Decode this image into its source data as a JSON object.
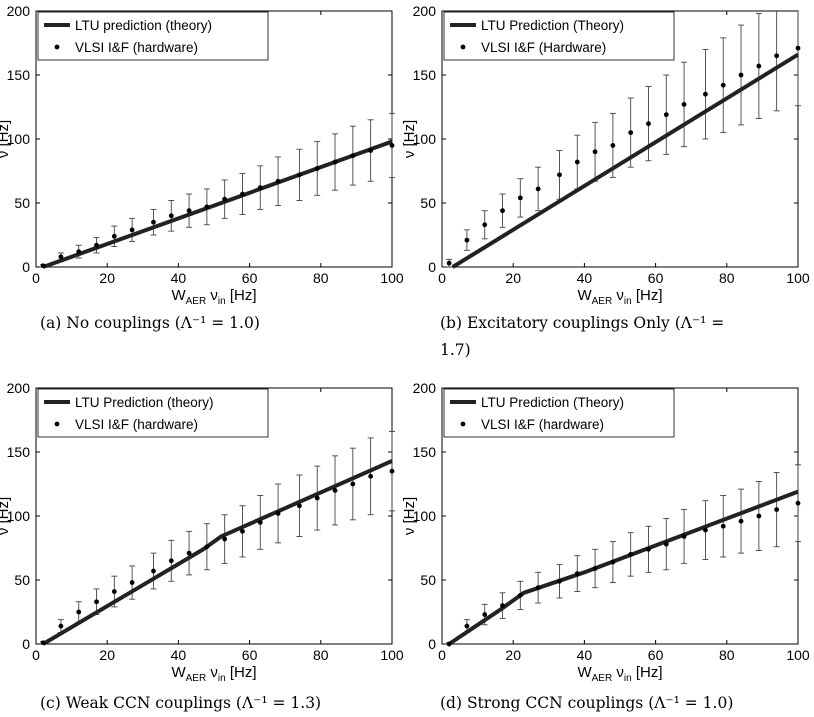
{
  "chart_data": [
    {
      "type": "line",
      "panel": "a",
      "xlabel_main": "W",
      "xlabel_sub1": "AER",
      "xlabel_mid": " ν",
      "xlabel_sub2": "in",
      "xlabel_end": " [Hz]",
      "ylabel": "ν [Hz]",
      "xlim": [
        0,
        100
      ],
      "ylim": [
        0,
        200
      ],
      "xticks": [
        "0",
        "20",
        "40",
        "60",
        "80",
        "100"
      ],
      "yticks": [
        "0",
        "50",
        "100",
        "150",
        "200"
      ],
      "legend_placement": "top-left",
      "caption": "(a) No couplings (Λ⁻¹ = 1.0)",
      "theory": {
        "name": "LTU prediction (theory)",
        "x": [
          2,
          100
        ],
        "y": [
          0,
          98
        ]
      },
      "hardware": {
        "name": "VLSI I&F (hardware)",
        "x": [
          2,
          7,
          12,
          17,
          22,
          27,
          33,
          38,
          43,
          48,
          53,
          58,
          63,
          68,
          74,
          79,
          84,
          89,
          94,
          100
        ],
        "y": [
          1,
          8,
          12,
          17,
          24,
          29,
          35,
          40,
          44,
          47,
          53,
          57,
          62,
          67,
          72,
          77,
          82,
          87,
          91,
          95
        ],
        "err": [
          1,
          3,
          5,
          6,
          8,
          9,
          10,
          12,
          13,
          14,
          15,
          16,
          17,
          19,
          20,
          21,
          22,
          23,
          24,
          25
        ]
      }
    },
    {
      "type": "line",
      "panel": "b",
      "xlabel_main": "W",
      "xlabel_sub1": "AER",
      "xlabel_mid": " ν",
      "xlabel_sub2": "in",
      "xlabel_end": " [Hz]",
      "ylabel": "ν [Hz]",
      "xlim": [
        0,
        100
      ],
      "ylim": [
        0,
        200
      ],
      "xticks": [
        "0",
        "20",
        "40",
        "60",
        "80",
        "100"
      ],
      "yticks": [
        "0",
        "50",
        "100",
        "150",
        "200"
      ],
      "legend_placement": "top-left",
      "caption": "(b) Excitatory couplings Only (Λ⁻¹ =",
      "caption_line2": "1.7)",
      "theory": {
        "name": "LTU Prediction (Theory)",
        "x": [
          3,
          100
        ],
        "y": [
          0,
          166
        ]
      },
      "hardware": {
        "name": "VLSI I&F (Hardware)",
        "x": [
          2,
          7,
          12,
          17,
          22,
          27,
          33,
          38,
          43,
          48,
          53,
          58,
          63,
          68,
          74,
          79,
          84,
          89,
          94,
          100
        ],
        "y": [
          3,
          21,
          33,
          44,
          54,
          61,
          72,
          82,
          90,
          95,
          105,
          112,
          119,
          127,
          135,
          142,
          150,
          157,
          165,
          171
        ],
        "err": [
          3,
          8,
          11,
          13,
          15,
          17,
          19,
          21,
          23,
          25,
          27,
          29,
          31,
          33,
          35,
          37,
          39,
          41,
          43,
          45
        ]
      }
    },
    {
      "type": "line",
      "panel": "c",
      "xlabel_main": "W",
      "xlabel_sub1": "AER",
      "xlabel_mid": " ν",
      "xlabel_sub2": "in",
      "xlabel_end": " [Hz]",
      "ylabel": "ν [Hz]",
      "xlim": [
        0,
        100
      ],
      "ylim": [
        0,
        200
      ],
      "xticks": [
        "0",
        "20",
        "40",
        "60",
        "80",
        "100"
      ],
      "yticks": [
        "0",
        "50",
        "100",
        "150",
        "200"
      ],
      "legend_placement": "top-left",
      "caption": "(c) Weak CCN couplings (Λ⁻¹ = 1.3)",
      "theory": {
        "name": "LTU Prediction (theory)",
        "x": [
          2,
          47,
          52,
          100
        ],
        "y": [
          0,
          74,
          84,
          143
        ]
      },
      "hardware": {
        "name": "VLSI I&F (hardware)",
        "x": [
          2,
          7,
          12,
          17,
          22,
          27,
          33,
          38,
          43,
          48,
          53,
          58,
          63,
          68,
          74,
          79,
          84,
          89,
          94,
          100
        ],
        "y": [
          1,
          14,
          25,
          33,
          41,
          48,
          57,
          65,
          71,
          76,
          82,
          88,
          95,
          102,
          108,
          114,
          120,
          125,
          131,
          135
        ],
        "err": [
          1,
          5,
          8,
          10,
          12,
          13,
          14,
          16,
          17,
          18,
          19,
          20,
          21,
          23,
          24,
          25,
          27,
          28,
          30,
          31
        ]
      }
    },
    {
      "type": "line",
      "panel": "d",
      "xlabel_main": "W",
      "xlabel_sub1": "AER",
      "xlabel_mid": " ν",
      "xlabel_sub2": "in",
      "xlabel_end": " [Hz]",
      "ylabel": "ν [Hz]",
      "xlim": [
        0,
        100
      ],
      "ylim": [
        0,
        200
      ],
      "xticks": [
        "0",
        "20",
        "40",
        "60",
        "80",
        "100"
      ],
      "yticks": [
        "0",
        "50",
        "100",
        "150",
        "200"
      ],
      "legend_placement": "top-left",
      "caption": "(d) Strong CCN couplings (Λ⁻¹ = 1.0)",
      "theory": {
        "name": "LTU Prediction (Theory)",
        "x": [
          2,
          17,
          23,
          40,
          100
        ],
        "y": [
          0,
          28,
          40,
          56,
          119
        ]
      },
      "hardware": {
        "name": "VLSI I&F (hardware)",
        "x": [
          2,
          7,
          12,
          17,
          22,
          27,
          33,
          38,
          43,
          48,
          53,
          58,
          63,
          68,
          74,
          79,
          84,
          89,
          94,
          100
        ],
        "y": [
          0,
          14,
          23,
          30,
          38,
          44,
          49,
          55,
          59,
          64,
          70,
          74,
          78,
          84,
          89,
          92,
          96,
          100,
          105,
          110
        ],
        "err": [
          1,
          5,
          8,
          10,
          11,
          12,
          13,
          14,
          15,
          16,
          17,
          18,
          20,
          21,
          23,
          24,
          25,
          27,
          29,
          30
        ]
      }
    }
  ]
}
